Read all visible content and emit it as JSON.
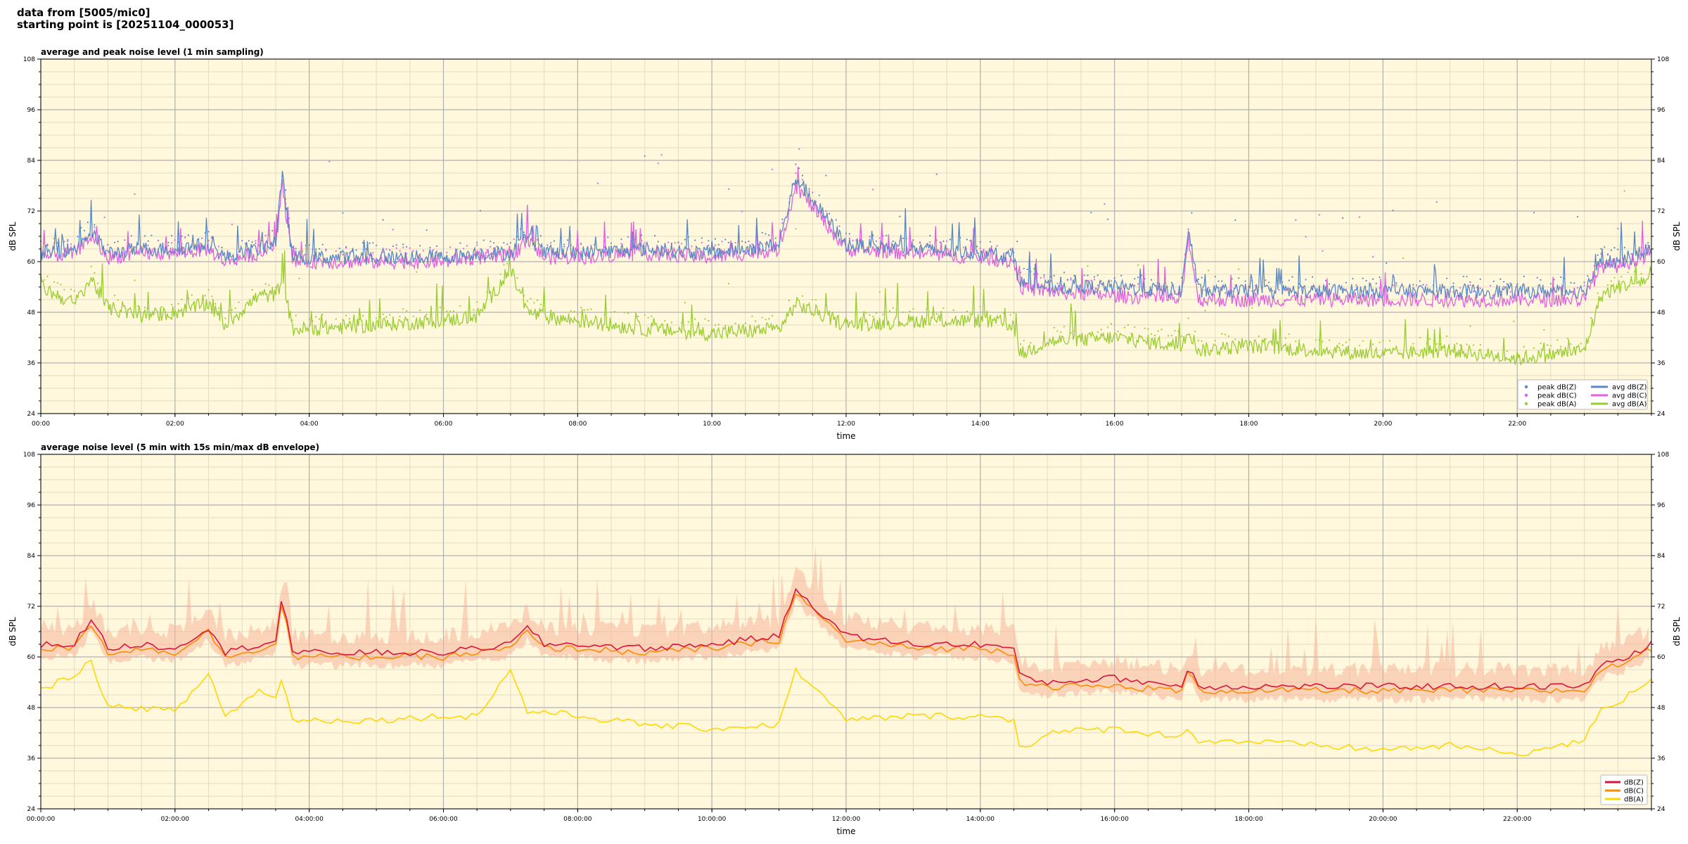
{
  "header": {
    "line1": "data from [5005/mic0]",
    "line2": "starting point is [20251104_000053]"
  },
  "colors": {
    "plot_bg": "#fff8dc",
    "grid_major": "#b0b0b0",
    "grid_minor": "#e3dcc0",
    "z": "#5b88c4",
    "c": "#e060e0",
    "a": "#9acd32",
    "z2": "#dc143c",
    "c2": "#ff8c00",
    "a2": "#ffd700",
    "envelope": "#f5b49a"
  },
  "chart_data": [
    {
      "type": "line",
      "title": "average and peak noise level (1 min sampling)",
      "xlabel": "time",
      "ylabel": "dB SPL",
      "xlim": [
        0,
        24
      ],
      "ylim": [
        24,
        108
      ],
      "yticks": [
        "24",
        "36",
        "48",
        "60",
        "72",
        "84",
        "96",
        "108"
      ],
      "xticks": [
        "00:00",
        "02:00",
        "04:00",
        "06:00",
        "08:00",
        "10:00",
        "12:00",
        "14:00",
        "16:00",
        "18:00",
        "20:00",
        "22:00"
      ],
      "grid": true,
      "legend_position": "bottom-right",
      "legend": [
        "peak dB(Z)",
        "peak dB(C)",
        "peak dB(A)",
        "avg dB(Z)",
        "avg dB(C)",
        "avg dB(A)"
      ],
      "x_hours": [
        0,
        0.5,
        0.75,
        1.0,
        1.5,
        2.0,
        2.5,
        2.75,
        3.25,
        3.5,
        3.6,
        3.75,
        4.0,
        5.0,
        6.0,
        6.5,
        7.0,
        7.25,
        7.5,
        8.0,
        9.0,
        10.0,
        11.0,
        11.25,
        12.0,
        13.0,
        14.0,
        14.5,
        14.6,
        15.0,
        16.0,
        17.0,
        17.1,
        17.25,
        18.0,
        19.0,
        20.0,
        21.0,
        22.0,
        23.0,
        23.25,
        23.5,
        24.0
      ],
      "series": [
        {
          "name": "avg dB(Z)",
          "values": [
            62,
            63,
            67,
            62,
            63,
            63,
            64,
            61,
            63,
            65,
            80,
            61,
            61,
            61,
            61,
            62,
            62,
            66,
            62,
            62,
            63,
            62,
            64,
            80,
            64,
            63,
            62,
            61,
            55,
            54,
            54,
            53,
            68,
            53,
            53,
            53,
            53,
            53,
            53,
            53,
            60,
            60,
            63
          ]
        },
        {
          "name": "avg dB(C)",
          "values": [
            61,
            62,
            66,
            61,
            62,
            62,
            63,
            60,
            62,
            64,
            78,
            60,
            60,
            60,
            60,
            61,
            61,
            65,
            61,
            61,
            62,
            61,
            63,
            78,
            63,
            62,
            61,
            60,
            54,
            53,
            52,
            51,
            66,
            51,
            51,
            51,
            51,
            51,
            51,
            51,
            59,
            59,
            62
          ]
        },
        {
          "name": "avg dB(A)",
          "values": [
            54,
            50,
            56,
            49,
            47,
            48,
            50,
            45,
            52,
            52,
            56,
            44,
            44,
            45,
            46,
            47,
            58,
            48,
            47,
            46,
            44,
            43,
            44,
            50,
            45,
            46,
            46,
            45,
            38,
            41,
            42,
            40,
            44,
            39,
            40,
            39,
            38,
            39,
            37,
            39,
            52,
            54,
            56
          ]
        }
      ]
    },
    {
      "type": "line",
      "title": "average noise level (5 min with 15s min/max dB envelope)",
      "xlabel": "time",
      "ylabel": "dB SPL",
      "xlim": [
        0,
        24
      ],
      "ylim": [
        24,
        108
      ],
      "yticks": [
        "24",
        "36",
        "48",
        "60",
        "72",
        "84",
        "96",
        "108"
      ],
      "xticks": [
        "00:00:00",
        "02:00:00",
        "04:00:00",
        "06:00:00",
        "08:00:00",
        "10:00:00",
        "12:00:00",
        "14:00:00",
        "16:00:00",
        "18:00:00",
        "20:00:00",
        "22:00:00"
      ],
      "grid": true,
      "legend_position": "bottom-right",
      "legend": [
        "dB(Z)",
        "dB(C)",
        "dB(A)"
      ],
      "x_hours": [
        0,
        0.5,
        0.75,
        1.0,
        1.5,
        2.0,
        2.5,
        2.75,
        3.25,
        3.5,
        3.6,
        3.75,
        4.0,
        5.0,
        6.0,
        6.5,
        7.0,
        7.25,
        7.5,
        8.0,
        9.0,
        10.0,
        11.0,
        11.25,
        12.0,
        13.0,
        14.0,
        14.5,
        14.6,
        15.0,
        16.0,
        17.0,
        17.1,
        17.25,
        18.0,
        19.0,
        20.0,
        21.0,
        22.0,
        23.0,
        23.25,
        23.5,
        24.0
      ],
      "series": [
        {
          "name": "dB(Z)",
          "values": [
            63,
            63,
            69,
            62,
            63,
            62,
            67,
            61,
            63,
            64,
            75,
            61,
            61,
            61,
            61,
            62,
            63,
            67,
            63,
            63,
            62,
            63,
            65,
            76,
            65,
            63,
            63,
            62,
            55,
            54,
            55,
            53,
            58,
            53,
            53,
            53,
            53,
            53,
            53,
            53,
            58,
            59,
            63
          ]
        },
        {
          "name": "dB(C)",
          "values": [
            62,
            62,
            68,
            61,
            62,
            61,
            66,
            60,
            62,
            63,
            74,
            60,
            60,
            60,
            60,
            61,
            62,
            66,
            62,
            62,
            61,
            62,
            64,
            75,
            64,
            62,
            62,
            61,
            54,
            53,
            53,
            52,
            57,
            52,
            52,
            52,
            52,
            52,
            52,
            52,
            57,
            58,
            62
          ]
        },
        {
          "name": "dB(A)",
          "values": [
            52,
            56,
            59,
            48,
            48,
            47,
            56,
            46,
            52,
            50,
            56,
            45,
            45,
            45,
            46,
            46,
            57,
            47,
            47,
            46,
            44,
            43,
            44,
            57,
            45,
            46,
            46,
            45,
            38,
            42,
            43,
            41,
            44,
            40,
            40,
            39,
            38,
            39,
            37,
            40,
            48,
            49,
            55
          ]
        }
      ]
    }
  ]
}
